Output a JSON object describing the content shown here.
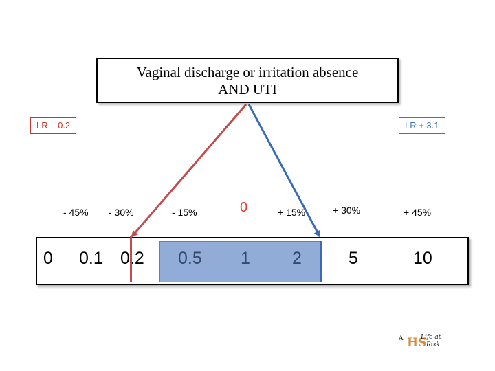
{
  "title": {
    "line1": "Vaginal discharge or irritation absence",
    "line2": "AND UTI"
  },
  "lr_negative": {
    "label": "LR – 0.2",
    "color": "#c0392b"
  },
  "lr_positive": {
    "label": "LR + 3.1",
    "color": "#3a76c4"
  },
  "probability_changes": [
    "- 45%",
    "- 30%",
    "- 15%",
    "0",
    "+ 15%",
    "+ 30%",
    "+ 45%"
  ],
  "scale_ticks": [
    "0",
    "0.1",
    "0.2",
    "0.5",
    "1",
    "2",
    "5",
    "10"
  ],
  "markers": {
    "negative_lr": 0.2,
    "positive_lr": 3.1
  },
  "colors": {
    "negative": "#c44b4b",
    "positive": "#3a6bb7",
    "neutral_zone": "#90acd7",
    "zero_label": "#e53b2c"
  },
  "logo": {
    "text_a": "A",
    "text_b": "Life at",
    "text_c": "Risk",
    "mark": "HS",
    "icon": "life-at-risk-logo"
  }
}
